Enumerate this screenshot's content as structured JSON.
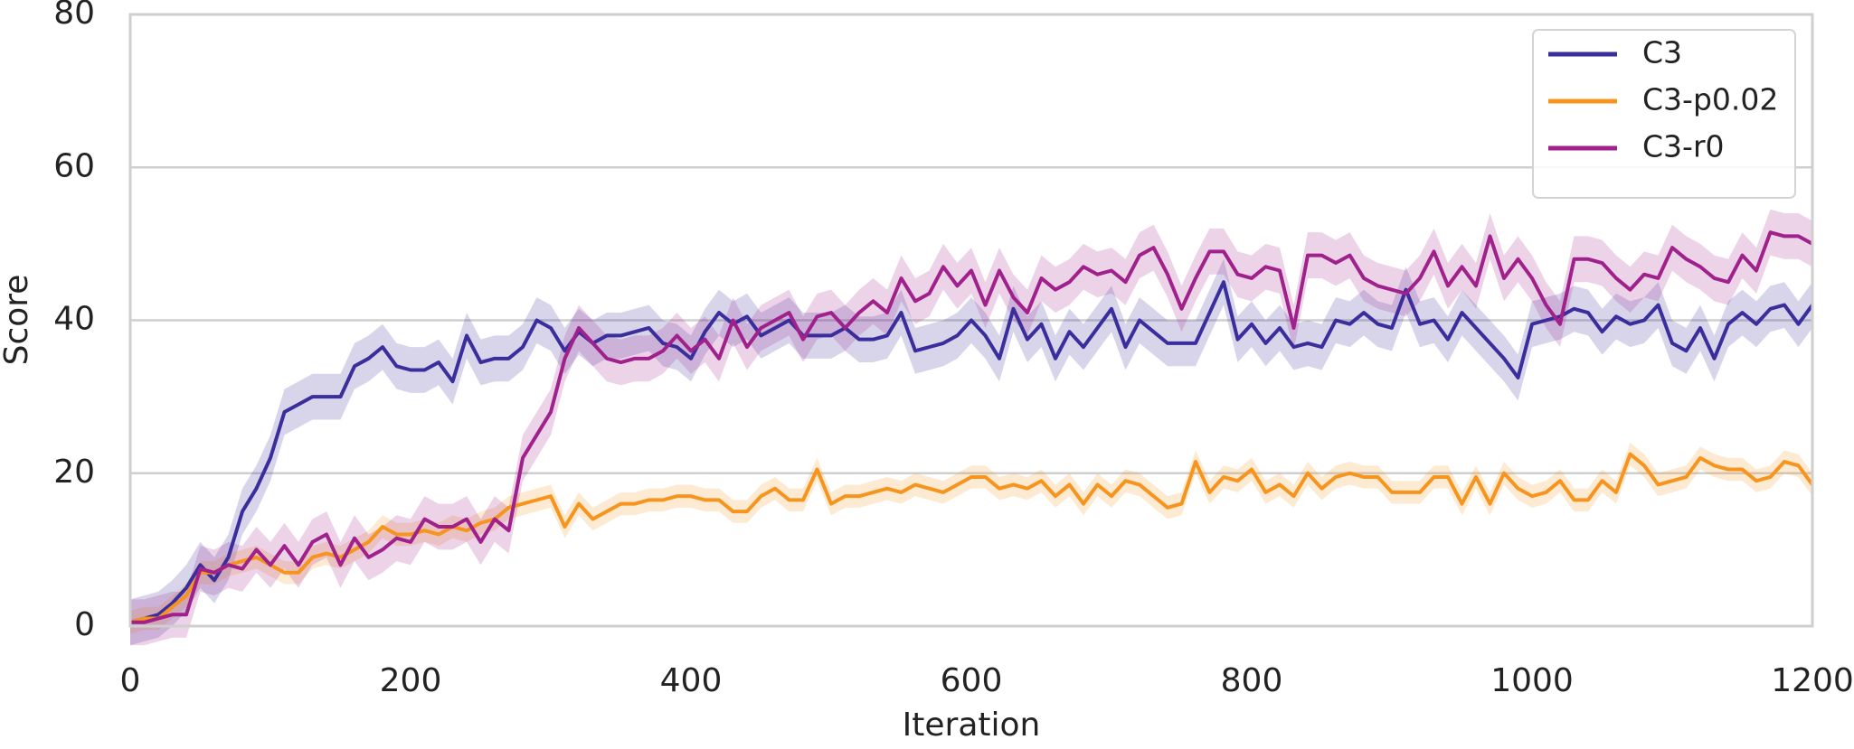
{
  "chart_data": {
    "type": "line",
    "x_label": "Iteration",
    "y_label": "Score",
    "x": [
      0,
      10,
      20,
      30,
      40,
      50,
      60,
      70,
      80,
      90,
      100,
      110,
      120,
      130,
      140,
      150,
      160,
      170,
      180,
      190,
      200,
      210,
      220,
      230,
      240,
      250,
      260,
      270,
      280,
      290,
      300,
      310,
      320,
      330,
      340,
      350,
      360,
      370,
      380,
      390,
      400,
      410,
      420,
      430,
      440,
      450,
      460,
      470,
      480,
      490,
      500,
      510,
      520,
      530,
      540,
      550,
      560,
      570,
      580,
      590,
      600,
      610,
      620,
      630,
      640,
      650,
      660,
      670,
      680,
      690,
      700,
      710,
      720,
      730,
      740,
      750,
      760,
      770,
      780,
      790,
      800,
      810,
      820,
      830,
      840,
      850,
      860,
      870,
      880,
      890,
      900,
      910,
      920,
      930,
      940,
      950,
      960,
      970,
      980,
      990,
      1000,
      1010,
      1020,
      1030,
      1040,
      1050,
      1060,
      1070,
      1080,
      1090,
      1100,
      1110,
      1120,
      1130,
      1140,
      1150,
      1160,
      1170,
      1180,
      1190,
      1200
    ],
    "series": [
      {
        "name": "C3",
        "color": "#3a2d9c",
        "error": 3,
        "values": [
          0.5,
          1,
          1.5,
          3,
          5,
          8,
          6,
          9,
          15,
          18,
          22,
          28,
          29,
          30,
          30,
          30,
          34,
          35,
          36.5,
          34,
          33.5,
          33.5,
          34.5,
          32,
          38,
          34.5,
          35,
          35,
          36.5,
          40,
          39,
          36,
          38.5,
          37,
          38,
          38,
          38.5,
          39,
          37,
          36.5,
          35,
          38.5,
          41,
          39.5,
          40.5,
          38,
          39,
          40,
          38,
          38,
          38,
          39,
          37.5,
          37.5,
          38,
          41,
          36,
          36.5,
          37,
          38,
          40,
          38,
          35,
          41.5,
          37.5,
          39.5,
          35,
          38.5,
          36.5,
          39,
          41.5,
          36.5,
          40,
          38.5,
          37,
          37,
          37,
          41,
          45,
          37.5,
          39.5,
          37,
          39,
          36.5,
          37,
          36.5,
          40,
          39.5,
          41,
          39.5,
          39,
          44,
          39.5,
          40,
          37.5,
          41,
          39,
          37,
          35,
          32.5,
          39.5,
          40,
          40.5,
          41.5,
          41,
          38.5,
          40.5,
          39.5,
          40,
          42,
          37,
          36,
          39,
          35,
          39.5,
          41,
          39.5,
          41.5,
          42,
          39.5,
          42
        ]
      },
      {
        "name": "C3-p0.02",
        "color": "#f7941d",
        "error": 1.5,
        "values": [
          0.5,
          1,
          1,
          2.5,
          4,
          7,
          7,
          8,
          8.5,
          9,
          8,
          7,
          7,
          9,
          9.5,
          9,
          10,
          11,
          13,
          12,
          12,
          12.5,
          12,
          13,
          12.5,
          13.5,
          14,
          15.5,
          16,
          16.5,
          17,
          13,
          16,
          14,
          15,
          16,
          16,
          16.5,
          16.5,
          17,
          17,
          16.5,
          16.5,
          15,
          15,
          17,
          18,
          16.5,
          16.5,
          20.5,
          16,
          17,
          17,
          17.5,
          18,
          17.5,
          18.5,
          18,
          17.5,
          18.5,
          19.5,
          19.5,
          18,
          18.5,
          18,
          19,
          17,
          18.5,
          16,
          18.5,
          17,
          19,
          18.5,
          17,
          15.5,
          16,
          21.5,
          17.5,
          19.5,
          19,
          20.5,
          17.5,
          18.5,
          17,
          20,
          18,
          19.5,
          20,
          19.5,
          19.5,
          17.5,
          17.5,
          17.5,
          19.5,
          19.5,
          16,
          19.5,
          16,
          20,
          18,
          17,
          17.5,
          19,
          16.5,
          16.5,
          19,
          17.5,
          22.5,
          21,
          18.5,
          19,
          19.5,
          22,
          21,
          20.5,
          20.5,
          19,
          19.5,
          21.5,
          21,
          18.5
        ]
      },
      {
        "name": "C3-r0",
        "color": "#a0218c",
        "error": 3,
        "values": [
          0.5,
          0.5,
          1,
          1.5,
          1.5,
          7.5,
          7,
          8,
          7.5,
          10,
          8,
          10.5,
          8,
          11,
          12,
          8,
          11.5,
          9,
          10,
          11.5,
          11,
          14,
          13,
          13,
          14,
          11,
          14,
          12.5,
          22,
          25,
          28,
          35,
          39,
          37,
          35,
          34.5,
          35,
          35,
          36,
          38,
          36,
          37.5,
          35,
          40,
          36.5,
          39,
          40,
          41,
          37.5,
          40.5,
          41,
          39,
          41,
          42.5,
          41,
          45.5,
          42.5,
          43.5,
          47,
          44.5,
          46.5,
          42,
          46.5,
          43,
          41,
          45.5,
          44,
          45,
          47,
          46,
          46.5,
          45,
          48.5,
          49.5,
          46,
          41.5,
          45.5,
          49,
          49,
          46,
          45.5,
          47,
          46.5,
          39,
          48.5,
          48.5,
          47.5,
          48.5,
          45.5,
          44.5,
          44,
          43.5,
          45.5,
          49,
          44.5,
          47,
          44.5,
          51,
          45.5,
          48,
          45.5,
          42,
          39.5,
          48,
          48,
          47.5,
          45.5,
          44,
          46,
          45.5,
          49.5,
          48,
          47,
          45.5,
          45,
          48.5,
          46.5,
          51.5,
          51,
          51,
          50
        ]
      }
    ],
    "xlim": [
      0,
      1200
    ],
    "xticks": [
      0,
      200,
      400,
      600,
      800,
      1000,
      1200
    ],
    "ylim": [
      0,
      80
    ],
    "yticks": [
      0,
      20,
      40,
      60,
      80
    ],
    "grid": true,
    "legend": "upper right"
  }
}
